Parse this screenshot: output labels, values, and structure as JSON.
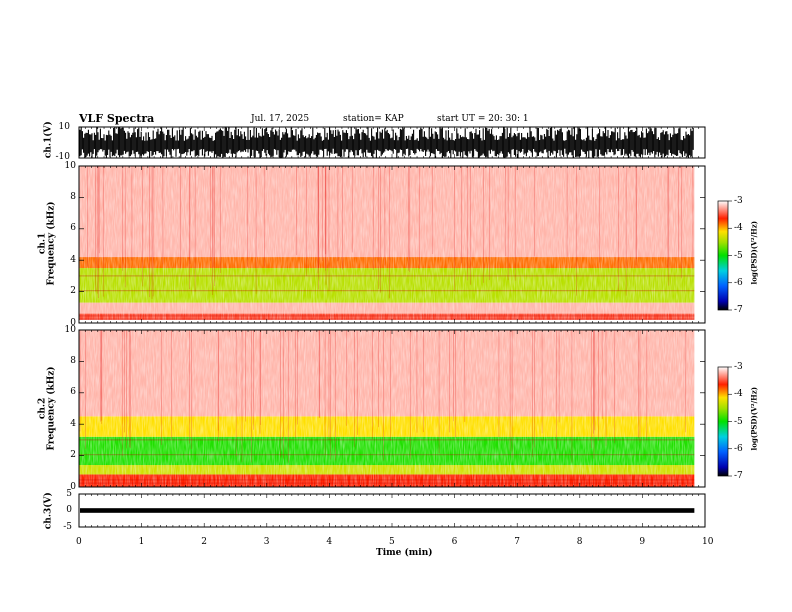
{
  "header": {
    "title": "VLF Spectra",
    "date": "Jul. 17, 2025",
    "station": "station= KAP",
    "start_ut": "start UT =  20: 30: 1"
  },
  "chart_data": [
    {
      "type": "line",
      "name": "ch1-waveform",
      "ylabel": "ch.1(V)",
      "ylim": [
        -10,
        10
      ],
      "yticks": [
        "10",
        "-10"
      ],
      "xlim": [
        0,
        10
      ],
      "description_values": "saturated waveform spanning -10 to 10 V"
    },
    {
      "type": "heatmap",
      "name": "ch1-spectrogram",
      "ylabel": "ch.1 Frequency (kHz)",
      "ylim": [
        0,
        10
      ],
      "yticks": [
        "0",
        "2",
        "4",
        "6",
        "8",
        "10"
      ],
      "xlim": [
        0,
        10
      ],
      "data_extent_min": 9.83,
      "bands": [
        {
          "from_khz": 0.2,
          "to_khz": 0.6,
          "log_psd": -3.5
        },
        {
          "from_khz": 0.6,
          "to_khz": 1.3,
          "log_psd": -3.2
        },
        {
          "from_khz": 1.3,
          "to_khz": 3.5,
          "log_psd": -4.4
        },
        {
          "from_khz": 3.5,
          "to_khz": 4.2,
          "log_psd": -3.8
        },
        {
          "from_khz": 4.2,
          "to_khz": 10.0,
          "log_psd": -3.2
        }
      ],
      "colorbar": {
        "label": "log(PSD)(V²/Hz)",
        "ticks": [
          "-3",
          "-4",
          "-5",
          "-6",
          "-7"
        ],
        "range": [
          -7,
          -3
        ]
      }
    },
    {
      "type": "heatmap",
      "name": "ch2-spectrogram",
      "ylabel": "ch.2 Frequency (kHz)",
      "ylim": [
        0,
        10
      ],
      "yticks": [
        "0",
        "2",
        "4",
        "6",
        "8",
        "10"
      ],
      "xlim": [
        0,
        10
      ],
      "data_extent_min": 9.83,
      "bands": [
        {
          "from_khz": 0.0,
          "to_khz": 0.8,
          "log_psd": -3.6
        },
        {
          "from_khz": 0.8,
          "to_khz": 1.4,
          "log_psd": -4.3
        },
        {
          "from_khz": 1.4,
          "to_khz": 3.2,
          "log_psd": -4.9
        },
        {
          "from_khz": 3.2,
          "to_khz": 4.5,
          "log_psd": -4.1
        },
        {
          "from_khz": 4.5,
          "to_khz": 10.0,
          "log_psd": -3.2
        }
      ],
      "colorbar": {
        "label": "log(PSD)(V²/Hz)",
        "ticks": [
          "-3",
          "-4",
          "-5",
          "-6",
          "-7"
        ],
        "range": [
          -7,
          -3
        ]
      }
    },
    {
      "type": "line",
      "name": "ch3-waveform",
      "ylabel": "ch.3(V)",
      "ylim": [
        -5,
        5
      ],
      "yticks": [
        "5",
        "0",
        "-5"
      ],
      "xlim": [
        0,
        10
      ],
      "level_v": 0.0,
      "amplitude_v": 0.7
    }
  ],
  "xaxis": {
    "label": "Time (min)",
    "ticks": [
      "0",
      "1",
      "2",
      "3",
      "4",
      "5",
      "6",
      "7",
      "8",
      "9",
      "10"
    ]
  }
}
